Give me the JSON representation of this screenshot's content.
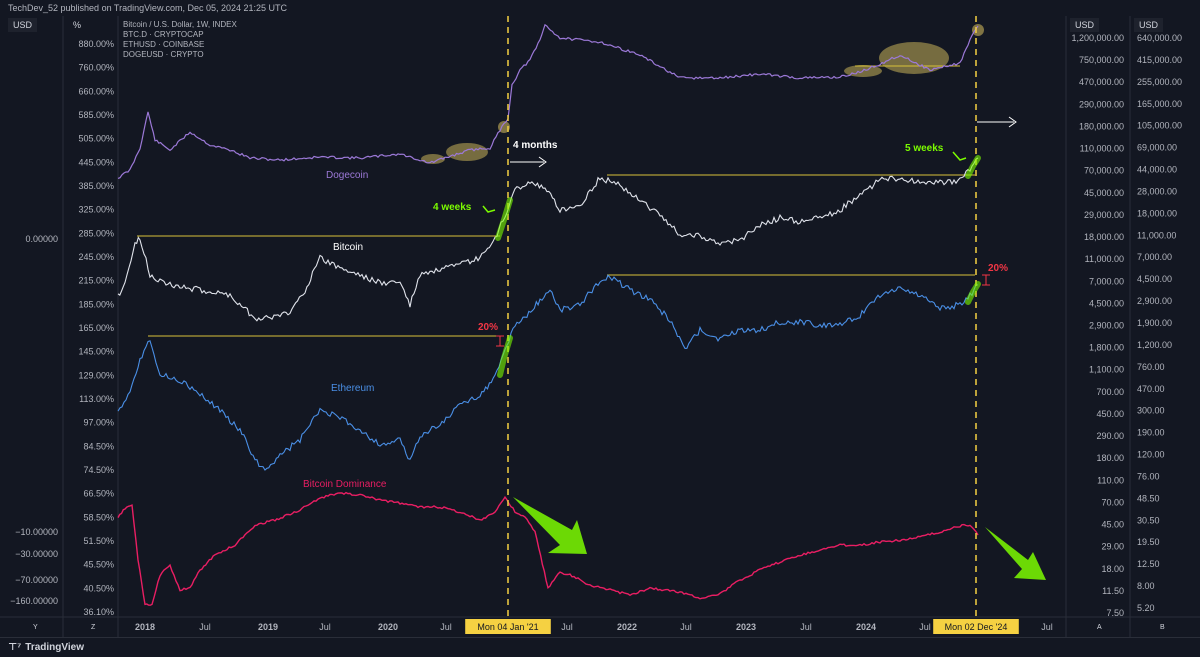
{
  "header": {
    "publisher": "TechDev_52 published on TradingView.com, Dec 05, 2024 21:25 UTC"
  },
  "toolbar": {
    "left_unit": "USD",
    "left_percent": "%",
    "right_unit_1": "USD",
    "right_unit_2": "USD",
    "bottom_left_1": "Y",
    "bottom_left_2": "Z",
    "bottom_right_1": "A",
    "bottom_right_2": "B"
  },
  "footer": {
    "brand": "TradingView"
  },
  "colors": {
    "background": "#131722",
    "dogecoin": "#9c79d8",
    "bitcoin": "#e0e3eb",
    "ethereum": "#4a8fe6",
    "dominance": "#e91e63",
    "highlight_green": "#7cfc00",
    "highlight_yellow": "#c9b35a",
    "vline": "#f5d142",
    "annotation_red": "#f23645"
  },
  "chart_data": {
    "type": "line",
    "legend": [
      "Bitcoin / U.S. Dollar, 1W, INDEX",
      "BTC.D · CRYPTOCAP",
      "ETHUSD · COINBASE",
      "DOGEUSD · CRYPTO"
    ],
    "x_ticks": [
      "2018",
      "Jul",
      "2019",
      "Jul",
      "2020",
      "Jul",
      "Mon 04 Jan '21",
      "Jul",
      "2022",
      "Jul",
      "2023",
      "Jul",
      "2024",
      "Jul",
      "Mon 02 Dec '24",
      "Jul"
    ],
    "highlighted_dates": [
      "Mon 04 Jan '21",
      "Mon 02 Dec '24"
    ],
    "axis_left_1": [
      "0.00000",
      "−10.00000",
      "−30.00000",
      "−70.00000",
      "−160.00000"
    ],
    "axis_left_2": [
      "880.00%",
      "760.00%",
      "660.00%",
      "585.00%",
      "505.00%",
      "445.00%",
      "385.00%",
      "325.00%",
      "285.00%",
      "245.00%",
      "215.00%",
      "185.00%",
      "165.00%",
      "145.00%",
      "129.00%",
      "113.00%",
      "97.00%",
      "84.50%",
      "74.50%",
      "66.50%",
      "58.50%",
      "51.50%",
      "45.50%",
      "40.50%",
      "36.10%"
    ],
    "axis_right_1": [
      "1,200,000.00",
      "750,000.00",
      "470,000.00",
      "290,000.00",
      "180,000.00",
      "110,000.00",
      "70,000.00",
      "45,000.00",
      "29,000.00",
      "18,000.00",
      "11,000.00",
      "7,000.00",
      "4,500.00",
      "2,900.00",
      "1,800.00",
      "1,100.00",
      "700.00",
      "450.00",
      "290.00",
      "180.00",
      "110.00",
      "70.00",
      "45.00",
      "29.00",
      "18.00",
      "11.50",
      "7.50"
    ],
    "axis_right_2": [
      "640,000.00",
      "415,000.00",
      "255,000.00",
      "165,000.00",
      "105,000.00",
      "69,000.00",
      "44,000.00",
      "28,000.00",
      "18,000.00",
      "11,000.00",
      "7,000.00",
      "4,500.00",
      "2,900.00",
      "1,900.00",
      "1,200.00",
      "760.00",
      "470.00",
      "300.00",
      "190.00",
      "120.00",
      "76.00",
      "48.50",
      "30.50",
      "19.50",
      "12.50",
      "8.00",
      "5.20"
    ],
    "series": [
      {
        "name": "Dogecoin"
      },
      {
        "name": "Bitcoin"
      },
      {
        "name": "Ethereum"
      },
      {
        "name": "Bitcoin Dominance"
      }
    ],
    "annotations": [
      "4 months",
      "4 weeks",
      "5 weeks",
      "20%",
      "20%"
    ]
  }
}
